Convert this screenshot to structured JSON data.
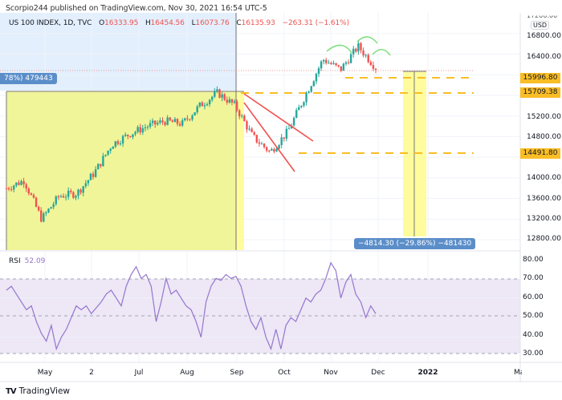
{
  "header": {
    "publish_line": "Scorpio244 published on TradingView.com, Nov 30, 2021 16:54 UTC-5"
  },
  "legend": {
    "symbol": "US 100 INDEX, 1D, TVC",
    "open_label": "O",
    "open": "16333.95",
    "high_label": "H",
    "high": "16454.56",
    "low_label": "L",
    "low": "16073.76",
    "close_label": "C",
    "close": "16135.93",
    "change": "−263.31 (−1.61%)"
  },
  "rsi": {
    "label": "RSI",
    "value": "52.09"
  },
  "measure_tags": {
    "left": "78%) 479443",
    "right": "−4814.30 (−29.86%) −481430"
  },
  "price_axis": {
    "currency": "USD",
    "top_partial": "17200.00",
    "ticks": [
      "16800.00",
      "16400.00",
      "15600.00",
      "15200.00",
      "14800.00",
      "14400.00",
      "14000.00",
      "13600.00",
      "13200.00",
      "12800.00"
    ],
    "level_tags": [
      "15996.80",
      "15709.38",
      "14491.80"
    ]
  },
  "rsi_axis": {
    "ticks": [
      "80.00",
      "70.00",
      "60.00",
      "50.00",
      "40.00",
      "30.00"
    ]
  },
  "time_axis": {
    "labels": [
      "May",
      "2",
      "Jul",
      "Aug",
      "Sep",
      "Oct",
      "Nov",
      "Dec",
      "2022",
      "Ma"
    ]
  },
  "footer": {
    "logo_glyph": "TV",
    "brand": "TradingView"
  },
  "colors": {
    "up": "#26a69a",
    "down": "#ef5350",
    "level": "#f9bd25",
    "measure_fill": "#f0f59a",
    "measure_fill_light": "#fefc9d",
    "rsi_line": "#9575cd",
    "rsi_band": "#ede7f6",
    "pattern": "#ef5350",
    "arc": "#7ee07e",
    "tag_bg": "#5b8ec9",
    "top_box": "#e3effc"
  },
  "chart_data": {
    "type": "candlestick",
    "title": "US 100 INDEX, 1D, TVC",
    "ylabel": "USD",
    "ylim": [
      12600,
      17200
    ],
    "x_ticks": [
      "May",
      "2",
      "Jul",
      "Aug",
      "Sep",
      "Oct",
      "Nov",
      "Dec",
      "2022",
      "Ma"
    ],
    "y_ticks": [
      12800,
      13200,
      13600,
      14000,
      14400,
      14800,
      15200,
      15600,
      16000,
      16400,
      16800
    ],
    "ohlc_last": {
      "open": 16333.95,
      "high": 16454.56,
      "low": 16073.76,
      "close": 16135.93,
      "change": -263.31,
      "change_pct": -1.61
    },
    "approx_close_path": [
      {
        "x": "late Apr",
        "y": 13800
      },
      {
        "x": "early May",
        "y": 13950
      },
      {
        "x": "mid May",
        "y": 13200
      },
      {
        "x": "late May",
        "y": 13650
      },
      {
        "x": "early Jun",
        "y": 13700
      },
      {
        "x": "mid Jun",
        "y": 14100
      },
      {
        "x": "early Jul",
        "y": 14650
      },
      {
        "x": "mid Jul",
        "y": 14850
      },
      {
        "x": "late Jul",
        "y": 15000
      },
      {
        "x": "early Aug",
        "y": 15100
      },
      {
        "x": "mid Aug",
        "y": 15050
      },
      {
        "x": "late Aug",
        "y": 15400
      },
      {
        "x": "early Sep",
        "y": 15650
      },
      {
        "x": "mid Sep",
        "y": 15400
      },
      {
        "x": "late Sep",
        "y": 14800
      },
      {
        "x": "early Oct",
        "y": 14500
      },
      {
        "x": "mid Oct",
        "y": 14900
      },
      {
        "x": "late Oct",
        "y": 15600
      },
      {
        "x": "early Nov",
        "y": 16300
      },
      {
        "x": "mid Nov",
        "y": 16100
      },
      {
        "x": "late Nov",
        "y": 16550
      },
      {
        "x": "Nov 30",
        "y": 16135.93
      }
    ],
    "horizontal_levels": [
      15996.8,
      15709.38,
      14491.8
    ],
    "annotations": [
      "Descending broadening wedge (Sep–Oct)",
      "Head-and-shoulders arcs (Nov)",
      "Measure tool: 78%) 479443",
      "Measure tool: −4814.30 (−29.86%) −481430"
    ],
    "rsi": {
      "value": 52.09,
      "ylim": [
        28,
        82
      ],
      "bands": [
        30,
        70
      ],
      "midline": 50,
      "approx_values": [
        64,
        66,
        62,
        58,
        54,
        56,
        48,
        42,
        38,
        46,
        34,
        40,
        44,
        50,
        56,
        54,
        56,
        52,
        55,
        58,
        62,
        64,
        60,
        56,
        66,
        72,
        76,
        70,
        72,
        66,
        48,
        58,
        70,
        62,
        64,
        60,
        56,
        54,
        48,
        40,
        58,
        66,
        70,
        69,
        72,
        70,
        71,
        66,
        56,
        48,
        44,
        50,
        40,
        34,
        44,
        34,
        46,
        50,
        48,
        54,
        60,
        58,
        62,
        64,
        70,
        78,
        74,
        60,
        68,
        72,
        62,
        58,
        50,
        56,
        52
      ]
    }
  }
}
